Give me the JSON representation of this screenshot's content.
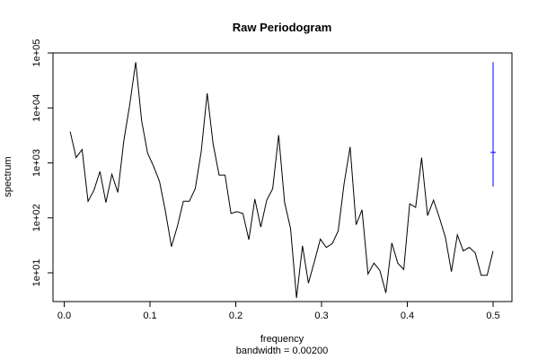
{
  "chart_data": {
    "type": "line",
    "title": "Raw Periodogram",
    "xlabel": "frequency",
    "xlabel_sub": "bandwidth = 0.00200",
    "ylabel": "spectrum",
    "y_scale": "log",
    "xlim": [
      0,
      0.5
    ],
    "ylim": [
      3,
      100000
    ],
    "x_ticks": [
      0.0,
      0.1,
      0.2,
      0.3,
      0.4,
      0.5
    ],
    "x_tick_labels": [
      "0.0",
      "0.1",
      "0.2",
      "0.3",
      "0.4",
      "0.5"
    ],
    "y_ticks": [
      10,
      100,
      1000,
      10000,
      100000
    ],
    "y_tick_labels": [
      "1e+01",
      "1e+02",
      "1e+03",
      "1e+04",
      "1e+05"
    ],
    "series": [
      {
        "color": "#000000",
        "x": [
          0.00694,
          0.01389,
          0.02083,
          0.02778,
          0.03472,
          0.04167,
          0.04861,
          0.05556,
          0.0625,
          0.06944,
          0.07639,
          0.08333,
          0.09028,
          0.09722,
          0.10417,
          0.11111,
          0.11806,
          0.125,
          0.13194,
          0.13889,
          0.14583,
          0.15278,
          0.15972,
          0.16667,
          0.17361,
          0.18056,
          0.1875,
          0.19444,
          0.20139,
          0.20833,
          0.21528,
          0.22222,
          0.22917,
          0.23611,
          0.24306,
          0.25,
          0.25694,
          0.26389,
          0.27083,
          0.27778,
          0.28472,
          0.29167,
          0.29861,
          0.30556,
          0.3125,
          0.31944,
          0.32639,
          0.33333,
          0.34028,
          0.34722,
          0.35417,
          0.36111,
          0.36806,
          0.375,
          0.38194,
          0.38889,
          0.39583,
          0.40278,
          0.40972,
          0.41667,
          0.42361,
          0.43056,
          0.4375,
          0.44444,
          0.45139,
          0.45833,
          0.46528,
          0.47222,
          0.47917,
          0.48611,
          0.49306,
          0.5
        ],
        "y": [
          3700,
          1250,
          1750,
          200,
          320,
          700,
          190,
          620,
          290,
          2500,
          11500,
          68000,
          5800,
          1500,
          870,
          460,
          130,
          30,
          70,
          200,
          200,
          340,
          1600,
          18500,
          2200,
          600,
          600,
          120,
          130,
          120,
          40,
          220,
          68,
          210,
          340,
          3200,
          190,
          64,
          3.5,
          31,
          6.5,
          16,
          41,
          29,
          34,
          58,
          430,
          1950,
          75,
          140,
          9.5,
          15,
          11,
          4.3,
          35,
          15,
          11.5,
          180,
          155,
          1250,
          110,
          210,
          100,
          44,
          10.5,
          49,
          25,
          29,
          23,
          9,
          9,
          25
        ]
      },
      {
        "color": "#0000ff",
        "x": [
          0.5,
          0.5
        ],
        "y": [
          370,
          68000
        ],
        "center": 1550
      }
    ]
  }
}
